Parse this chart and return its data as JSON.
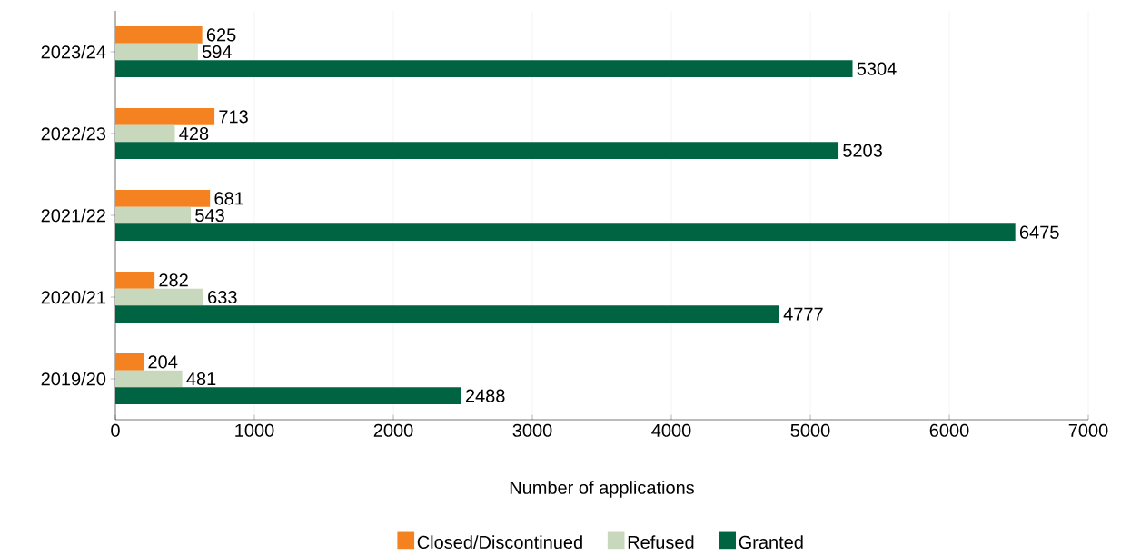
{
  "chart_data": {
    "type": "bar",
    "orientation": "horizontal",
    "categories": [
      "2023/24",
      "2022/23",
      "2021/22",
      "2020/21",
      "2019/20"
    ],
    "series": [
      {
        "name": "Closed/Discontinued",
        "color": "#f58220",
        "values": [
          625,
          713,
          681,
          282,
          204
        ]
      },
      {
        "name": "Refused",
        "color": "#c8d8bc",
        "values": [
          594,
          428,
          543,
          633,
          481
        ]
      },
      {
        "name": "Granted",
        "color": "#006341",
        "values": [
          5304,
          5203,
          6475,
          4777,
          2488
        ]
      }
    ],
    "xlabel": "Number of applications",
    "xlim": [
      0,
      7000
    ],
    "xticks": [
      0,
      1000,
      2000,
      3000,
      4000,
      5000,
      6000,
      7000
    ],
    "grid": "x",
    "legend": "bottom",
    "data_labels": true
  }
}
